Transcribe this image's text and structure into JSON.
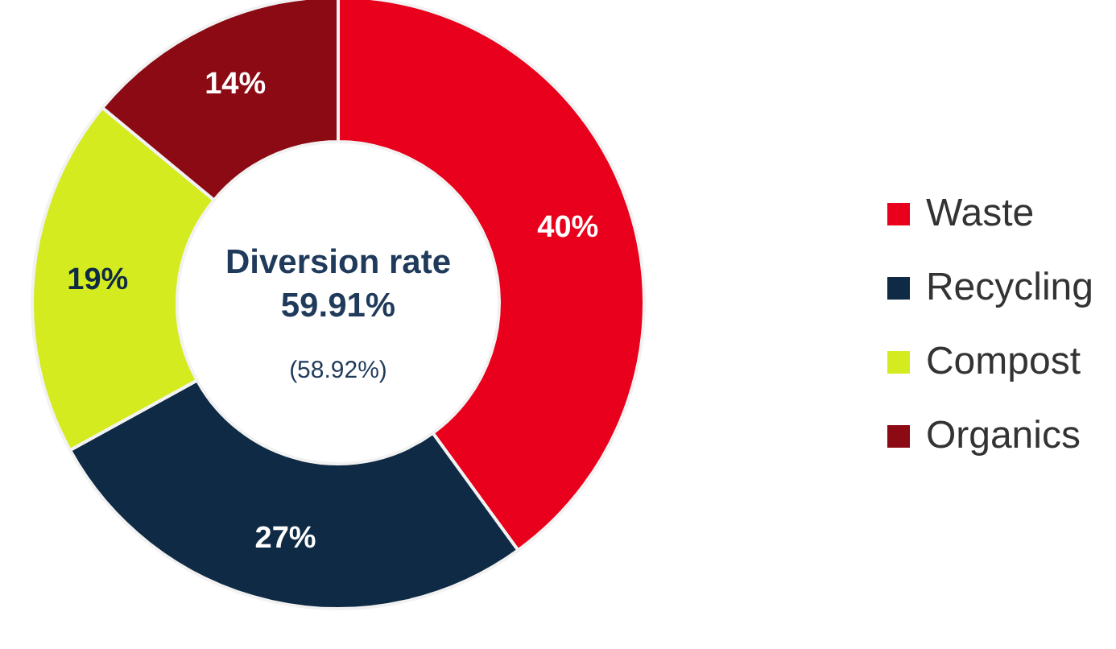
{
  "chart_data": {
    "type": "donut",
    "categories": [
      "Waste",
      "Recycling",
      "Compost",
      "Organics"
    ],
    "values": [
      40,
      27,
      19,
      14
    ],
    "colors": [
      "#e8001c",
      "#0f2a44",
      "#d4eb1f",
      "#8b0a14"
    ],
    "value_labels": [
      "40%",
      "27%",
      "19%",
      "14%"
    ],
    "legend": "right",
    "annotations": [
      "Diversion rate",
      "59.91%",
      "(58.92%)"
    ]
  }
}
